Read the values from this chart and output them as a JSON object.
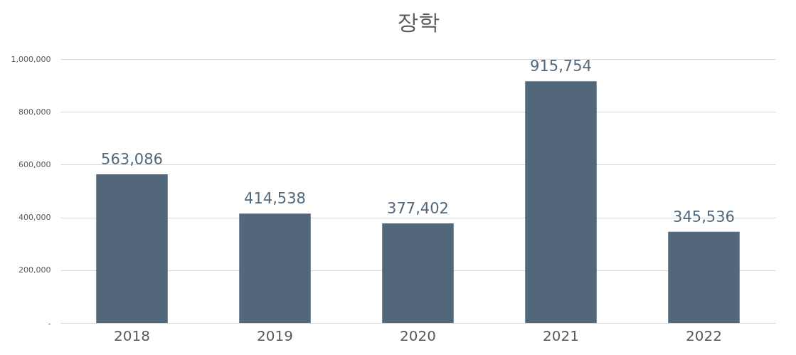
{
  "chart_data": {
    "type": "bar",
    "title": "장학",
    "categories": [
      "2018",
      "2019",
      "2020",
      "2021",
      "2022"
    ],
    "values": [
      563086,
      414538,
      377402,
      915754,
      345536
    ],
    "color": "#52677a",
    "ylim": [
      0,
      1000000
    ],
    "value_labels": [
      "563,086",
      "414,538",
      "377,402",
      "915,754",
      "345,536"
    ],
    "yticks": [
      {
        "value": 0,
        "label": "-"
      },
      {
        "value": 200000,
        "label": "200,000"
      },
      {
        "value": 400000,
        "label": "400,000"
      },
      {
        "value": 600000,
        "label": "600,000"
      },
      {
        "value": 800000,
        "label": "800,000"
      },
      {
        "value": 1000000,
        "label": "1,000,000"
      }
    ],
    "grid": "y"
  }
}
